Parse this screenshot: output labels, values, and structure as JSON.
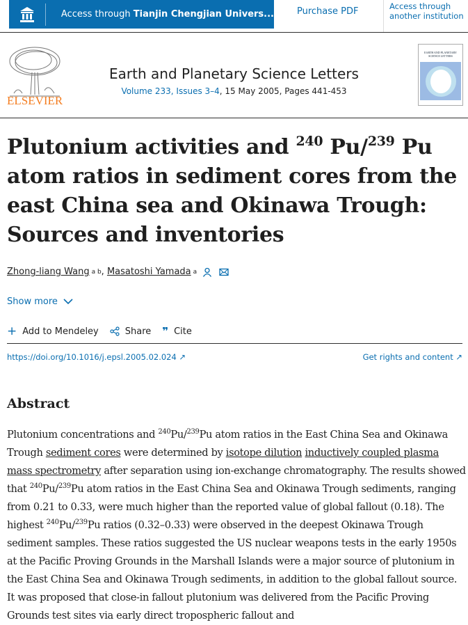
{
  "topbar": {
    "access_prefix": "Access through ",
    "access_institution": "Tianjin Chengjian Univers...",
    "purchase": "Purchase PDF",
    "access_other": "Access through another institution"
  },
  "header": {
    "publisher": "ELSEVIER",
    "journal": "Earth and Planetary Science Letters",
    "volume_link": "Volume 233, Issues 3–4",
    "volume_rest": ", 15 May 2005, Pages 441-453",
    "cover_title": "EARTH AND PLANETARY SCIENCE LETTERS"
  },
  "article": {
    "title_1": "Plutonium activities and ",
    "sup1": "240",
    "title_2": " Pu/",
    "sup2": "239",
    "title_3": " Pu atom ratios in sediment cores from the east China sea and Okinawa Trough: Sources and inventories"
  },
  "authors": [
    {
      "name": "Zhong-liang Wang",
      "aff": "a b"
    },
    {
      "name": "Masatoshi Yamada",
      "aff": "a"
    }
  ],
  "show_more": "Show more",
  "actions": {
    "mendeley": "Add to Mendeley",
    "share": "Share",
    "cite": "Cite"
  },
  "doi": "https://doi.org/10.1016/j.epsl.2005.02.024",
  "rights": "Get rights and content",
  "abstract": {
    "heading": "Abstract",
    "s1": "Plutonium concentrations and ",
    "p240a": "240",
    "s2": "Pu/",
    "p239a": "239",
    "s3": "Pu atom ratios in the East China Sea and Okinawa Trough ",
    "l1": "sediment cores",
    "s4": " were determined by ",
    "l2": "isotope dilution",
    "s5": " ",
    "l3": "inductively coupled plasma mass spectrometry",
    "s6": " after separation using ion-exchange chromatography. The results showed that ",
    "p240b": "240",
    "s7": "Pu/",
    "p239b": "239",
    "s8": "Pu atom ratios in the East China Sea and Okinawa Trough sediments, ranging from 0.21 to 0.33, were much higher than the reported value of global fallout (0.18). The highest ",
    "p240c": "240",
    "s9": "Pu/",
    "p239c": "239",
    "s10": "Pu ratios (0.32–0.33) were observed in the deepest Okinawa Trough sediment samples. These ratios suggested the US nuclear weapons tests in the early 1950s at the Pacific Proving Grounds in the Marshall Islands were a major source of plutonium in the East China Sea and Okinawa Trough sediments, in addition to the global fallout source. It was proposed that close-in fallout plutonium was delivered from the Pacific Proving Grounds test sites via early direct tropospheric fallout and"
  }
}
